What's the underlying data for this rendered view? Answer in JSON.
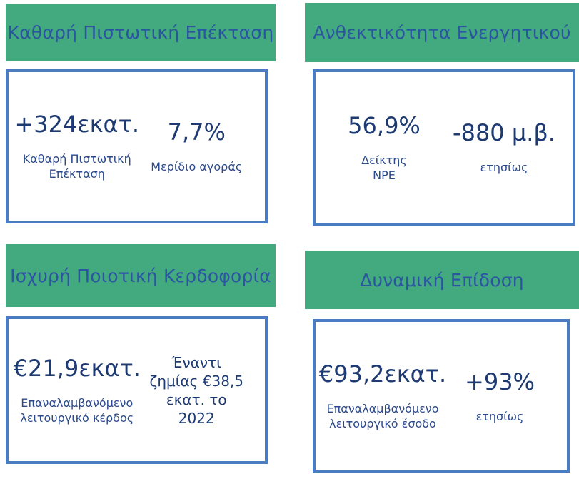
{
  "colors": {
    "banner_bg": "#43AA7F",
    "banner_text": "#2B55A1",
    "card_border": "#4A7CC2",
    "value_text": "#1E3A72",
    "label_text": "#2B4A8C"
  },
  "quadrants": [
    {
      "title": "Καθαρή Πιστωτική Επέκταση",
      "metrics": [
        {
          "value": "+324εκατ.",
          "label": "Καθαρή Πιστωτική\nΕπέκταση"
        },
        {
          "value": "7,7%",
          "label": "Μερίδιο αγοράς"
        }
      ]
    },
    {
      "title": "Ανθεκτικότητα Ενεργητικού",
      "metrics": [
        {
          "value": "56,9%",
          "label": "Δείκτης\nNPE"
        },
        {
          "value": "-880 μ.β.",
          "label": "ετησίως"
        }
      ]
    },
    {
      "title": "Ισχυρή Ποιοτική Κερδοφορία",
      "metrics": [
        {
          "value": "€21,9εκατ.",
          "label": "Επαναλαμβανόμενο\nλειτουργικό κέρδος"
        },
        {
          "note": "Έναντι\nζημίας €38,5\nεκατ. το\n2022"
        }
      ]
    },
    {
      "title": "Δυναμική Επίδοση",
      "metrics": [
        {
          "value": "€93,2εκατ.",
          "label": "Επαναλαμβανόμενο\nλειτουργικό έσοδο"
        },
        {
          "value": "+93%",
          "label": "ετησίως"
        }
      ]
    }
  ]
}
